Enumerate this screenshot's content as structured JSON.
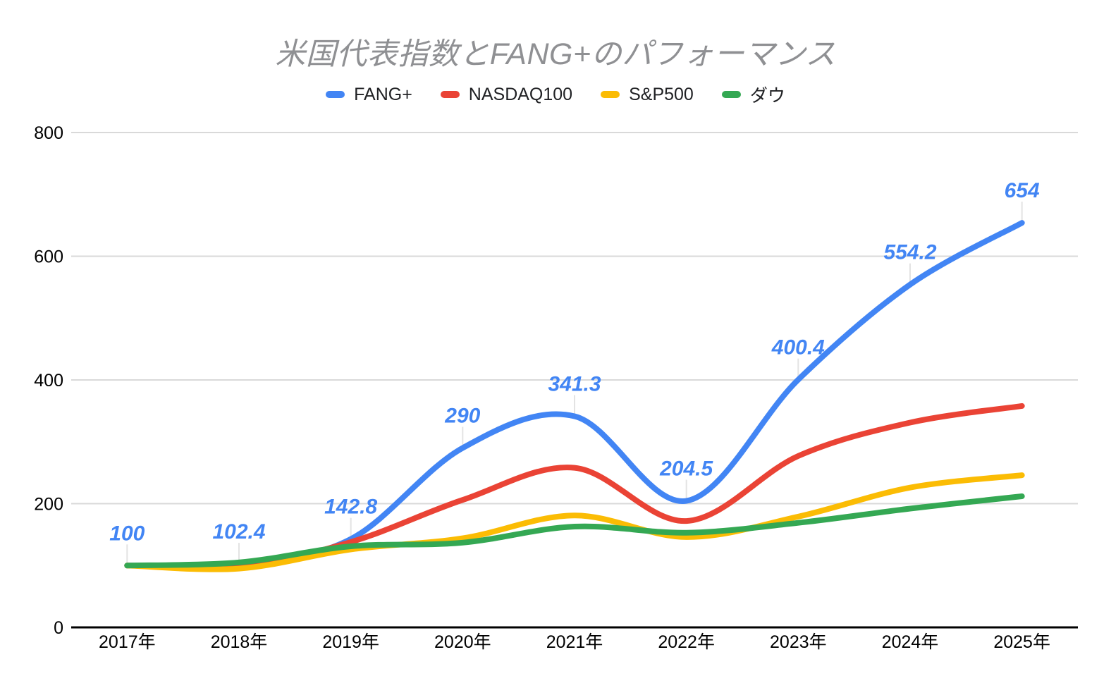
{
  "title": "米国代表指数とFANG+のパフォーマンス",
  "chart_data": {
    "type": "line",
    "smooth": true,
    "grid": true,
    "legend_position": "top",
    "xlabel": "",
    "ylabel": "",
    "ylim": [
      0,
      800
    ],
    "yticks": [
      0,
      200,
      400,
      600,
      800
    ],
    "categories": [
      "2017年",
      "2018年",
      "2019年",
      "2020年",
      "2021年",
      "2022年",
      "2023年",
      "2024年",
      "2025年"
    ],
    "series": [
      {
        "name": "FANG+",
        "color": "#4285F4",
        "values": [
          100,
          102.4,
          142.8,
          290,
          341.3,
          204.5,
          400.4,
          554.2,
          654
        ],
        "point_labels": [
          "100",
          "102.4",
          "142.8",
          "290",
          "341.3",
          "204.5",
          "400.4",
          "554.2",
          "654"
        ]
      },
      {
        "name": "NASDAQ100",
        "color": "#EA4335",
        "values": [
          100,
          99,
          138,
          206,
          258,
          172,
          277,
          331,
          358
        ],
        "point_labels": null
      },
      {
        "name": "S&P500",
        "color": "#FBBC04",
        "values": [
          100,
          95,
          126,
          144,
          181,
          146,
          179,
          226,
          246
        ],
        "point_labels": null
      },
      {
        "name": "ダウ",
        "color": "#34A853",
        "values": [
          100,
          105,
          131,
          137,
          163,
          153,
          169,
          192,
          212
        ],
        "point_labels": null
      }
    ],
    "colors": {
      "data_label": "#4285F4",
      "gridline": "#d9d9d9",
      "axis_line": "#000000",
      "axis_text": "#000000",
      "callout": "#e3e3e3"
    }
  }
}
